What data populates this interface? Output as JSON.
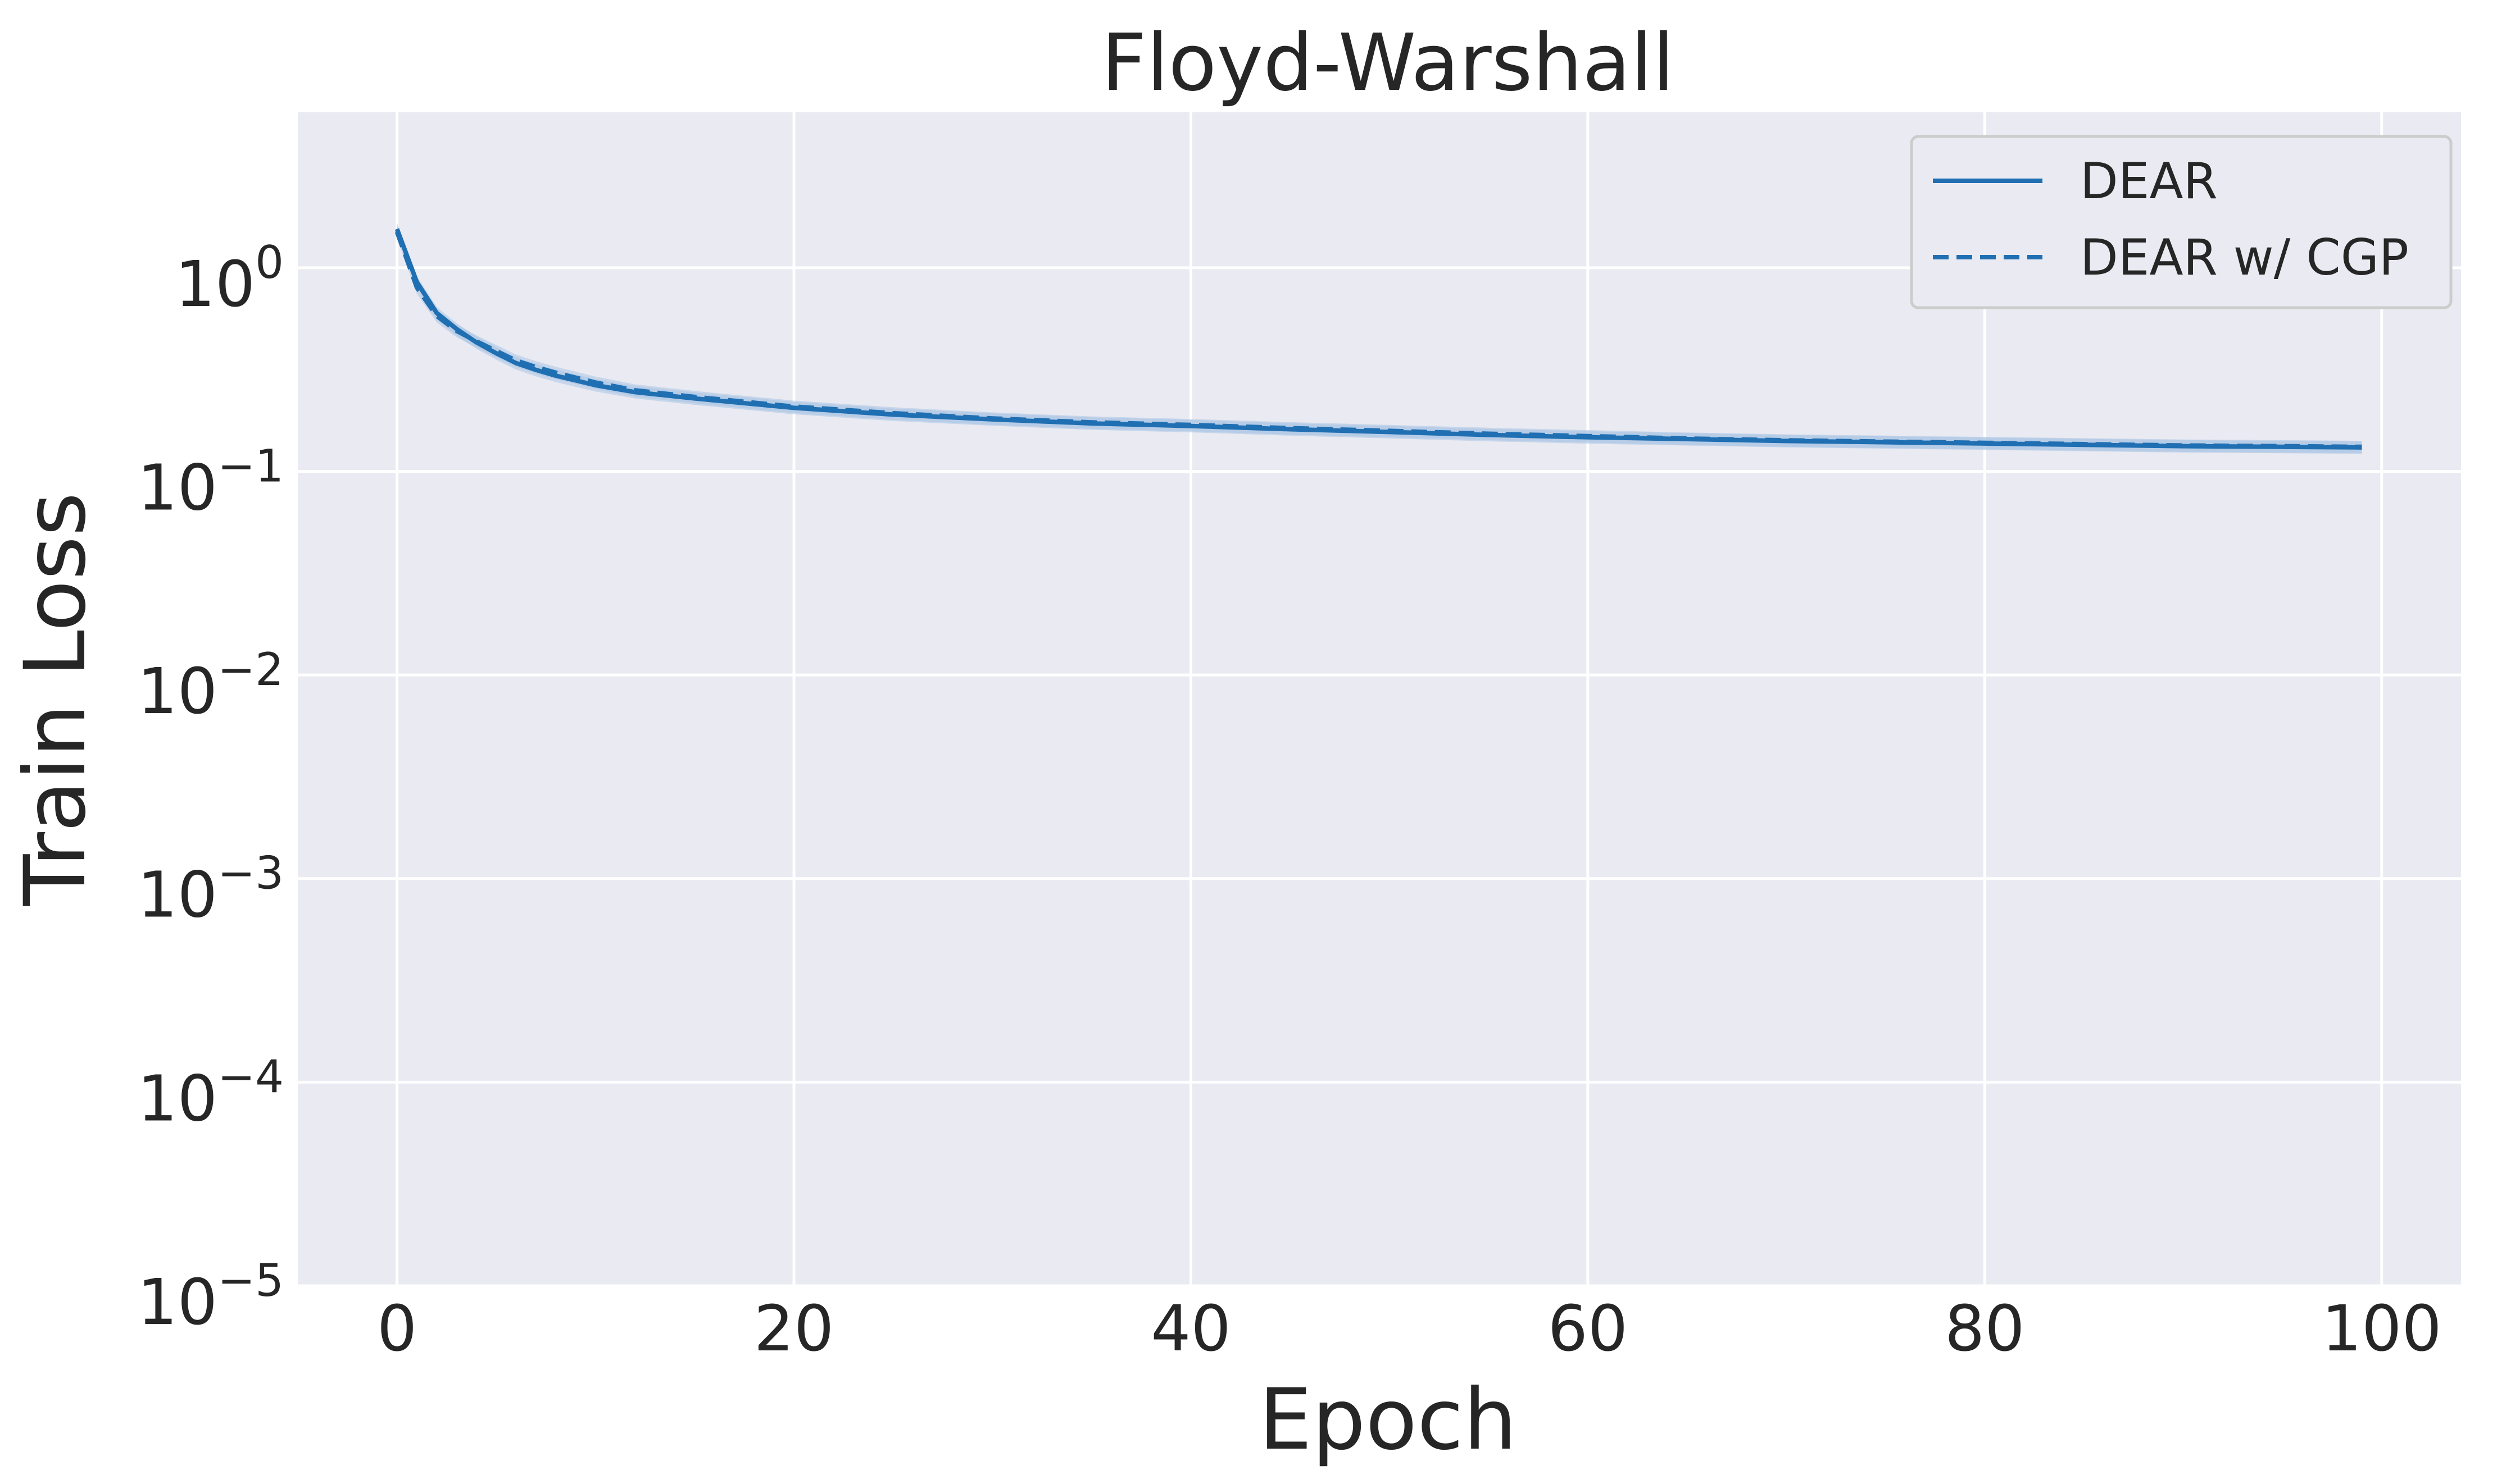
{
  "chart_data": {
    "type": "line",
    "title": "Floyd-Warshall",
    "xlabel": "Epoch",
    "ylabel": "Train Loss",
    "xlim": [
      -5,
      104
    ],
    "ylim": [
      1e-05,
      5.8
    ],
    "yscale": "log",
    "grid": true,
    "legend_position": "top-right",
    "x_ticks": [
      {
        "value": 0,
        "label": "0"
      },
      {
        "value": 20,
        "label": "20"
      },
      {
        "value": 40,
        "label": "40"
      },
      {
        "value": 60,
        "label": "60"
      },
      {
        "value": 80,
        "label": "80"
      },
      {
        "value": 100,
        "label": "100"
      }
    ],
    "y_ticks": [
      {
        "value": 1,
        "base": "10",
        "exp": "0"
      },
      {
        "value": 0.1,
        "base": "10",
        "exp": "−1"
      },
      {
        "value": 0.01,
        "base": "10",
        "exp": "−2"
      },
      {
        "value": 0.001,
        "base": "10",
        "exp": "−3"
      },
      {
        "value": 0.0001,
        "base": "10",
        "exp": "−4"
      },
      {
        "value": 1e-05,
        "base": "10",
        "exp": "−5"
      }
    ],
    "x": [
      0,
      1,
      2,
      3,
      4,
      5,
      6,
      7,
      8,
      10,
      12,
      15,
      20,
      25,
      30,
      35,
      40,
      45,
      50,
      55,
      60,
      65,
      70,
      75,
      80,
      85,
      90,
      95,
      99
    ],
    "series": [
      {
        "name": "DEAR",
        "style": "solid",
        "color": "#1f6fb2",
        "values": [
          1.55,
          0.85,
          0.6,
          0.5,
          0.43,
          0.38,
          0.34,
          0.315,
          0.295,
          0.265,
          0.245,
          0.228,
          0.205,
          0.19,
          0.18,
          0.172,
          0.167,
          0.161,
          0.156,
          0.151,
          0.147,
          0.144,
          0.141,
          0.139,
          0.137,
          0.135,
          0.133,
          0.132,
          0.131
        ]
      },
      {
        "name": "DEAR w/ CGP",
        "style": "dashed",
        "color": "#1f6fb2",
        "values": [
          1.5,
          0.8,
          0.58,
          0.49,
          0.435,
          0.39,
          0.35,
          0.325,
          0.305,
          0.273,
          0.25,
          0.232,
          0.208,
          0.193,
          0.182,
          0.174,
          0.169,
          0.163,
          0.158,
          0.153,
          0.149,
          0.145,
          0.142,
          0.14,
          0.138,
          0.136,
          0.134,
          0.133,
          0.132
        ]
      }
    ],
    "band_color": "#a9c4e4",
    "colors": {
      "plot_bg": "#eaeaf2",
      "grid": "#ffffff",
      "text": "#262626",
      "legend_bg": "#eaeaf2",
      "legend_border": "#cccccc"
    }
  }
}
